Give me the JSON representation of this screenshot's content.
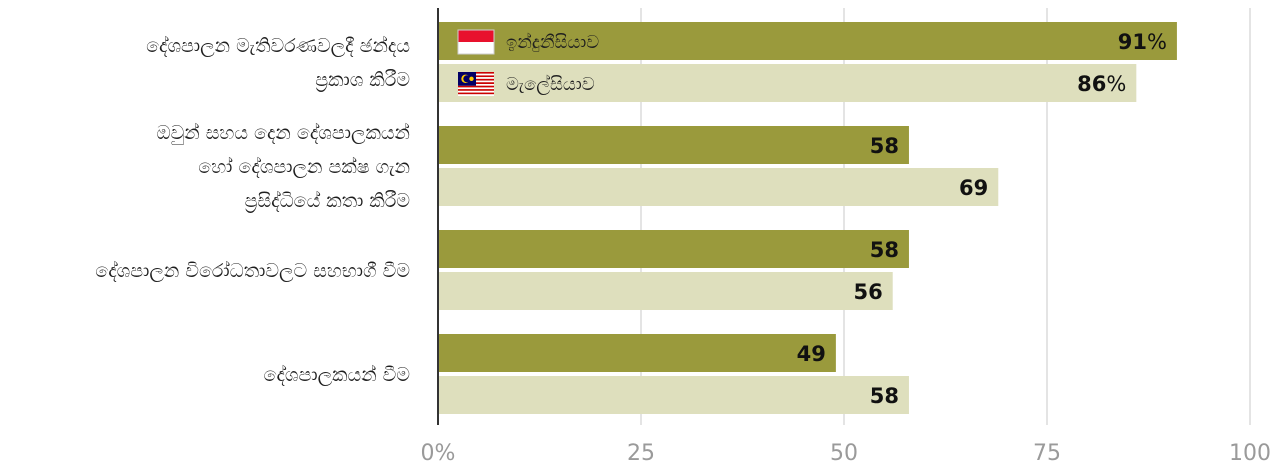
{
  "chart_data": {
    "type": "bar",
    "orientation": "horizontal",
    "categories": [
      [
        "දේශපාලන මැතිවරණවලදී ඡන්දය",
        "ප්‍රකාශ කිරීම"
      ],
      [
        "ඔවුන් සහය දෙන දේශපාලකයන්",
        "හෝ දේශපාලන පක්ෂ ගැන",
        "ප්‍රසිද්ධියේ කතා කිරීම"
      ],
      [
        "දේශපාලන විරෝධතාවලට සහභාගී වීම"
      ],
      [
        "දේශපාලකයන් වීම"
      ]
    ],
    "series": [
      {
        "name": "ඉන්දුනීසියාව",
        "values": [
          91,
          58,
          58,
          49
        ],
        "color": "#9a9a3c"
      },
      {
        "name": "මැලේසියාව",
        "values": [
          86,
          69,
          56,
          58
        ],
        "color": "#dedfbd"
      }
    ],
    "value_suffix_first_row": "%",
    "x_ticks": [
      "0%",
      "25",
      "50",
      "75",
      "100"
    ],
    "xlim": [
      0,
      100
    ],
    "grid": true,
    "legend_placement": "inside top bars",
    "legend_icons": [
      "indonesia-flag",
      "malaysia-flag"
    ]
  }
}
